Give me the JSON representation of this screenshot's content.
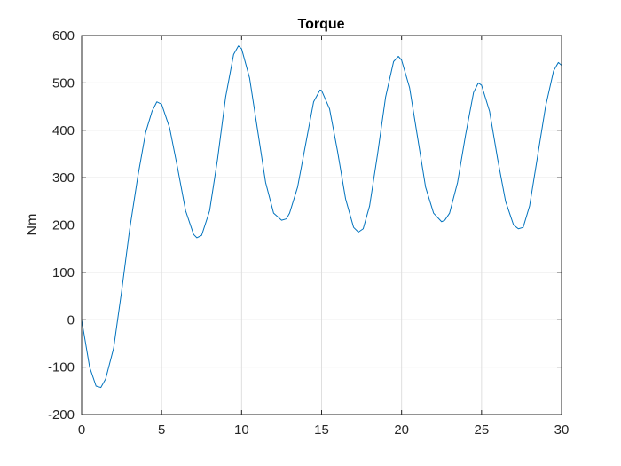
{
  "chart_data": {
    "type": "line",
    "title": "Torque",
    "xlabel": "",
    "ylabel": "Nm",
    "xlim": [
      0,
      30
    ],
    "ylim": [
      -200,
      600
    ],
    "xticks": [
      0,
      5,
      10,
      15,
      20,
      25,
      30
    ],
    "yticks": [
      -200,
      -100,
      0,
      100,
      200,
      300,
      400,
      500,
      600
    ],
    "grid": true,
    "colors": {
      "line": "#0072BD",
      "grid": "#dfdfdf",
      "axis": "#262626",
      "background": "#ffffff"
    },
    "series": [
      {
        "x": [
          0,
          0.5,
          0.9,
          1.2,
          1.5,
          2.0,
          2.5,
          3.0,
          3.5,
          4.0,
          4.4,
          4.7,
          5.0,
          5.5,
          6.0,
          6.5,
          7.0,
          7.2,
          7.5,
          8.0,
          8.5,
          9.0,
          9.5,
          9.8,
          10.0,
          10.5,
          11.0,
          11.5,
          12.0,
          12.5,
          12.8,
          13.0,
          13.5,
          14.0,
          14.5,
          14.9,
          15.0,
          15.5,
          16.0,
          16.5,
          17.0,
          17.3,
          17.6,
          18.0,
          18.5,
          19.0,
          19.5,
          19.8,
          20.0,
          20.5,
          21.0,
          21.5,
          22.0,
          22.5,
          22.7,
          23.0,
          23.5,
          24.0,
          24.5,
          24.8,
          25.0,
          25.5,
          26.0,
          26.5,
          27.0,
          27.3,
          27.6,
          28.0,
          28.5,
          29.0,
          29.5,
          29.8,
          30.0
        ],
        "y": [
          0,
          -100,
          -140,
          -143,
          -125,
          -60,
          60,
          190,
          300,
          395,
          440,
          460,
          455,
          405,
          320,
          230,
          180,
          173,
          178,
          230,
          340,
          470,
          560,
          578,
          572,
          510,
          400,
          290,
          225,
          210,
          213,
          225,
          280,
          370,
          460,
          485,
          484,
          445,
          355,
          255,
          195,
          185,
          192,
          240,
          350,
          470,
          545,
          556,
          548,
          490,
          385,
          280,
          225,
          207,
          210,
          225,
          290,
          390,
          480,
          500,
          495,
          440,
          340,
          250,
          200,
          192,
          195,
          240,
          345,
          450,
          525,
          543,
          537
        ]
      }
    ]
  }
}
